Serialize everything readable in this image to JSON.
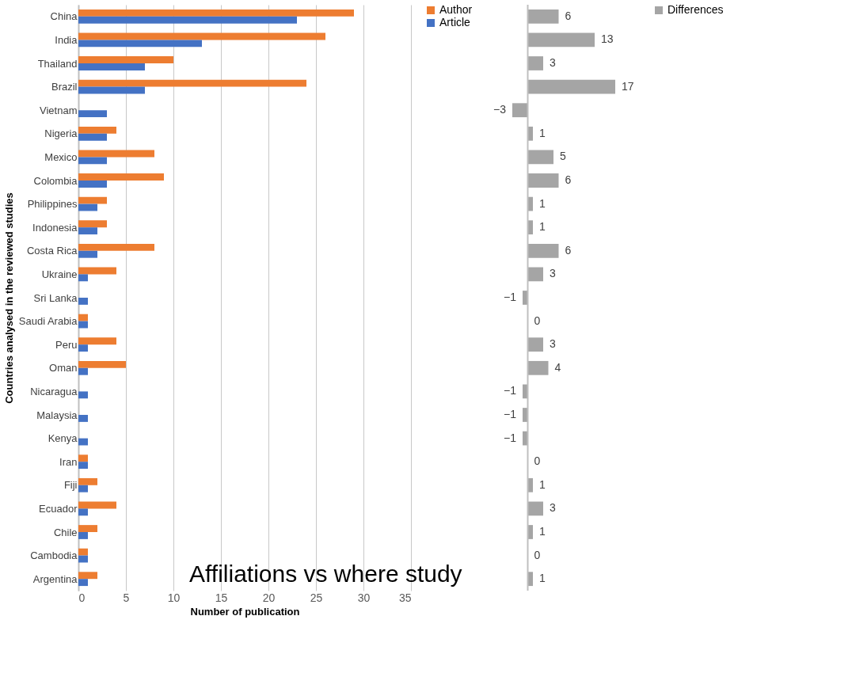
{
  "chart_data": [
    {
      "type": "bar",
      "orientation": "horizontal",
      "xlabel": "Number of publication",
      "ylabel": "Countries analysed in the reviewed studies",
      "categories": [
        "China",
        "India",
        "Thailand",
        "Brazil",
        "Vietnam",
        "Nigeria",
        "Mexico",
        "Colombia",
        "Philippines",
        "Indonesia",
        "Costa Rica",
        "Ukraine",
        "Sri Lanka",
        "Saudi Arabia",
        "Peru",
        "Oman",
        "Nicaragua",
        "Malaysia",
        "Kenya",
        "Iran",
        "Fiji",
        "Ecuador",
        "Chile",
        "Cambodia",
        "Argentina"
      ],
      "series": [
        {
          "name": "Author",
          "color": "#ed7d31",
          "values": [
            29,
            26,
            10,
            24,
            0,
            4,
            8,
            9,
            3,
            3,
            8,
            4,
            0,
            1,
            4,
            5,
            0,
            0,
            0,
            1,
            2,
            4,
            2,
            1,
            2
          ]
        },
        {
          "name": "Article",
          "color": "#4472c4",
          "values": [
            23,
            13,
            7,
            7,
            3,
            3,
            3,
            3,
            2,
            2,
            2,
            1,
            1,
            1,
            1,
            1,
            1,
            1,
            1,
            1,
            1,
            1,
            1,
            1,
            1
          ]
        }
      ],
      "xlim": [
        0,
        35
      ],
      "xticks": [
        0,
        5,
        10,
        15,
        20,
        25,
        30,
        35
      ],
      "grid": "x",
      "legend": "right",
      "annotations": [
        "Affiliations vs where study"
      ]
    },
    {
      "type": "bar",
      "orientation": "horizontal",
      "tick_labels": false,
      "data_labels": true,
      "series": [
        {
          "name": "Differences",
          "color": "#a5a5a5",
          "values": [
            6,
            13,
            3,
            17,
            -3,
            1,
            5,
            6,
            1,
            1,
            6,
            3,
            -1,
            0,
            3,
            4,
            -1,
            -1,
            -1,
            0,
            1,
            3,
            1,
            0,
            1
          ]
        }
      ],
      "legend": "right"
    }
  ]
}
